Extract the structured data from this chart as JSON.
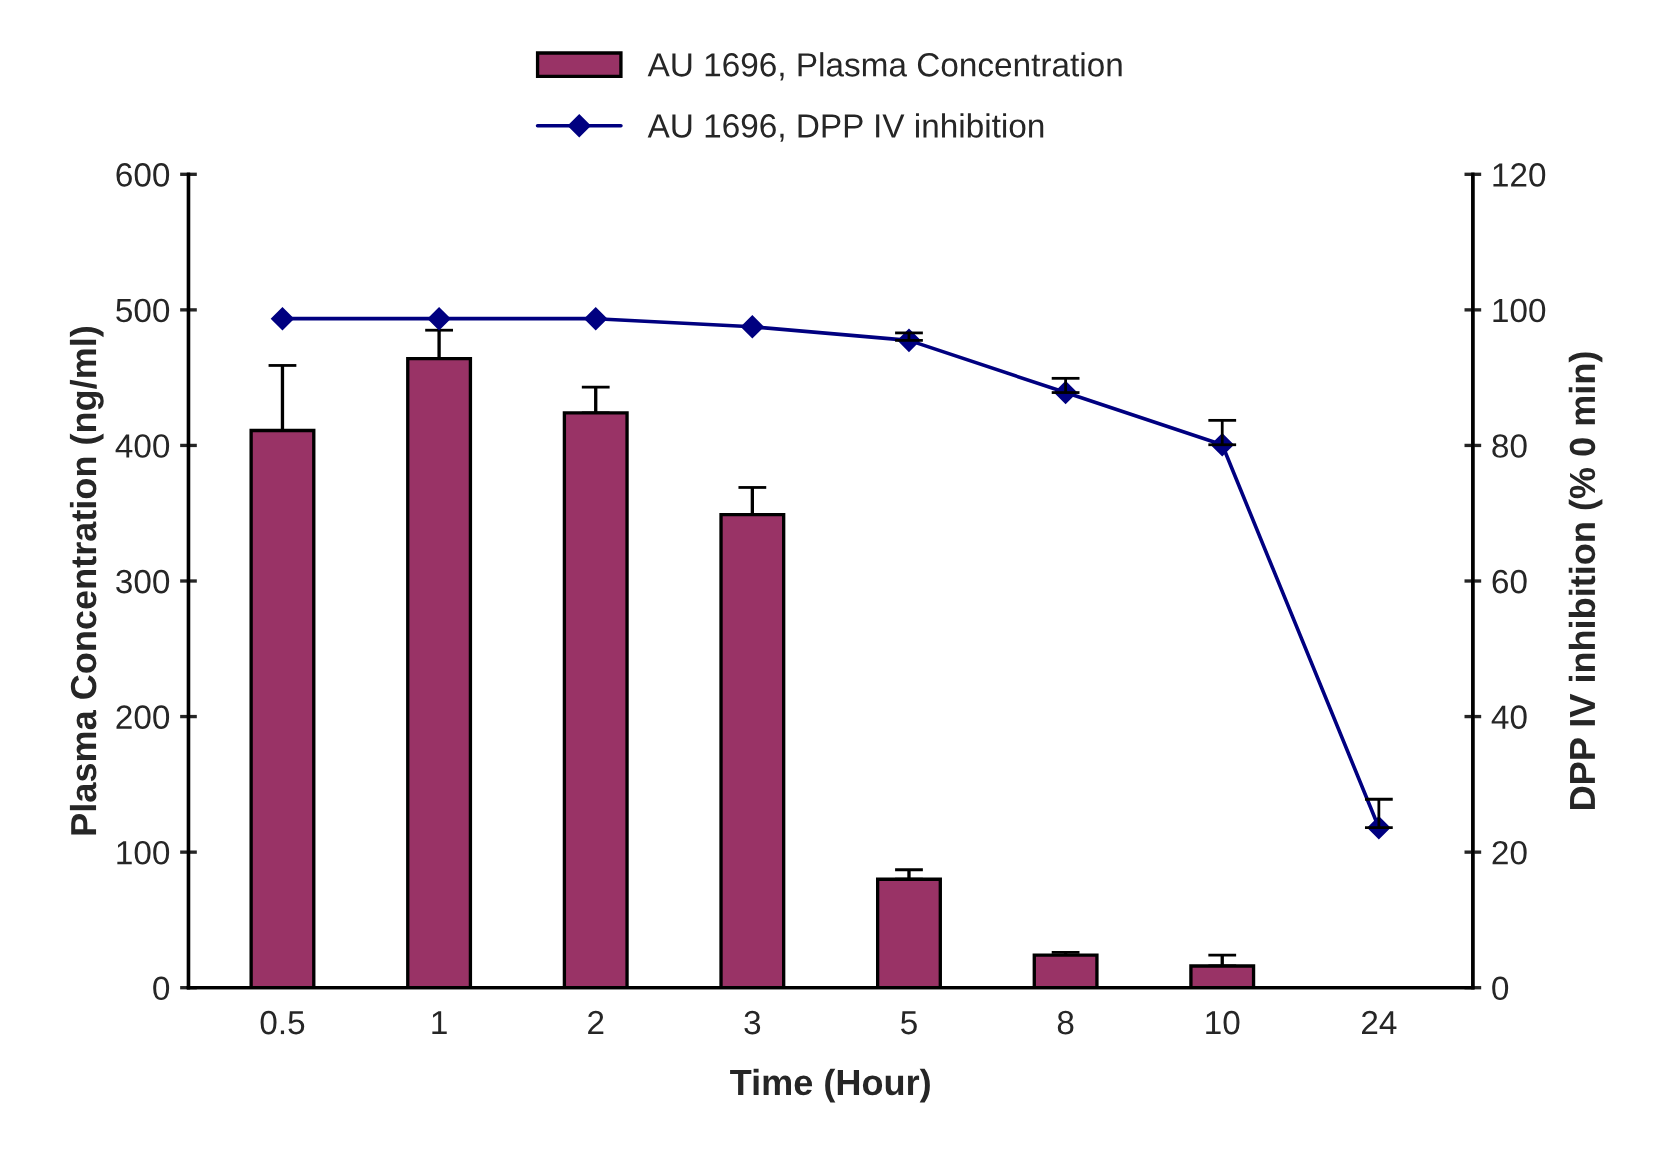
{
  "chart_data": {
    "type": "bar",
    "xlabel": "Time (Hour)",
    "ylabel": "Plasma Concentration (ng/ml)",
    "y2label": "DPP IV inhibition (% 0 min)",
    "categories": [
      "0.5",
      "1",
      "2",
      "3",
      "5",
      "8",
      "10",
      "24"
    ],
    "series": [
      {
        "name": "AU 1696, Plasma Concentration",
        "color": "#993366",
        "values": [
          411,
          464,
          424,
          349,
          80,
          24,
          16,
          null
        ],
        "errors": [
          [
            411,
            459
          ],
          [
            464,
            485
          ],
          [
            424,
            443
          ],
          [
            349,
            369
          ],
          [
            80,
            87
          ],
          [
            24,
            26
          ],
          [
            16,
            24
          ],
          null
        ]
      },
      {
        "name": "AU 1696, DPP IV inhibition",
        "type": "line",
        "axis": "y2",
        "color": "#000080",
        "marker": "diamond",
        "values": [
          98.7,
          98.7,
          98.7,
          97.5,
          95.5,
          87.8,
          80.1,
          23.6
        ],
        "errors": [
          null,
          null,
          null,
          null,
          [
            95.5,
            96.6
          ],
          [
            87.8,
            89.9
          ],
          [
            80.1,
            83.7
          ],
          [
            23.6,
            27.8
          ]
        ]
      }
    ],
    "ylim": [
      0,
      600
    ],
    "yticks": [
      0,
      100,
      200,
      300,
      400,
      500,
      600
    ],
    "y2lim": [
      0,
      120
    ],
    "y2ticks": [
      0,
      20,
      40,
      60,
      80,
      100,
      120
    ],
    "grid": false,
    "legend": "top"
  }
}
